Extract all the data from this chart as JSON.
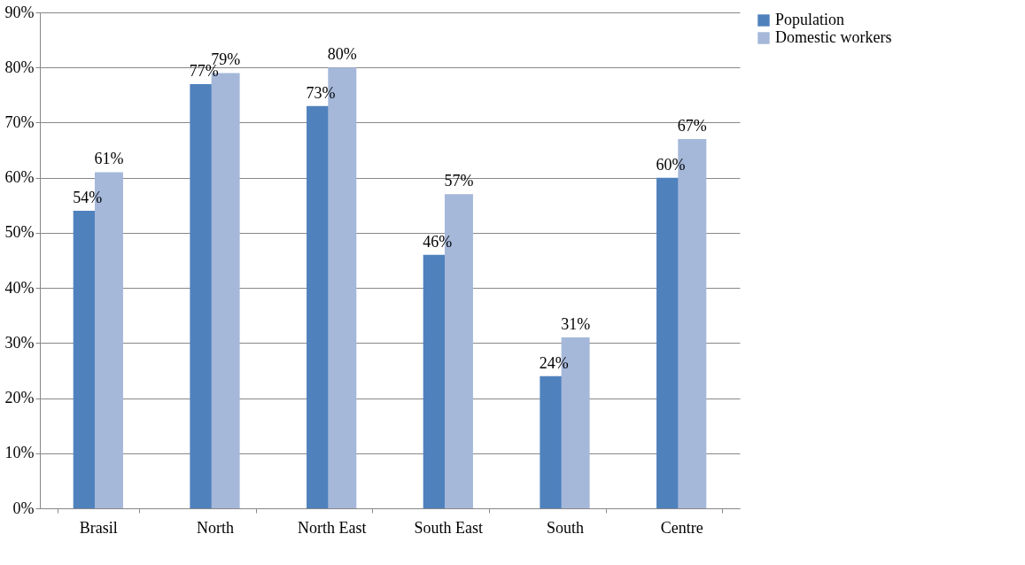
{
  "chart_data": {
    "type": "bar",
    "categories": [
      "Brasil",
      "North",
      "North East",
      "South East",
      "South",
      "Centre"
    ],
    "series": [
      {
        "name": "Population",
        "color": "#4f81bd",
        "values": [
          54,
          77,
          73,
          46,
          24,
          60
        ],
        "value_labels": [
          "54%",
          "77%",
          "73%",
          "46%",
          "24%",
          "60%"
        ]
      },
      {
        "name": "Domestic workers",
        "color": "#a5b8da",
        "values": [
          61,
          79,
          80,
          57,
          31,
          67
        ],
        "value_labels": [
          "61%",
          "79%",
          "80%",
          "57%",
          "31%",
          "67%"
        ]
      }
    ],
    "ylim": [
      0,
      90
    ],
    "yticks": [
      {
        "value": 0,
        "label": "0%"
      },
      {
        "value": 10,
        "label": "10%"
      },
      {
        "value": 20,
        "label": "20%"
      },
      {
        "value": 30,
        "label": "30%"
      },
      {
        "value": 40,
        "label": "40%"
      },
      {
        "value": 50,
        "label": "50%"
      },
      {
        "value": 60,
        "label": "60%"
      },
      {
        "value": 70,
        "label": "70%"
      },
      {
        "value": 80,
        "label": "80%"
      },
      {
        "value": 90,
        "label": "90%"
      }
    ],
    "grid": "y",
    "legend": "right"
  }
}
